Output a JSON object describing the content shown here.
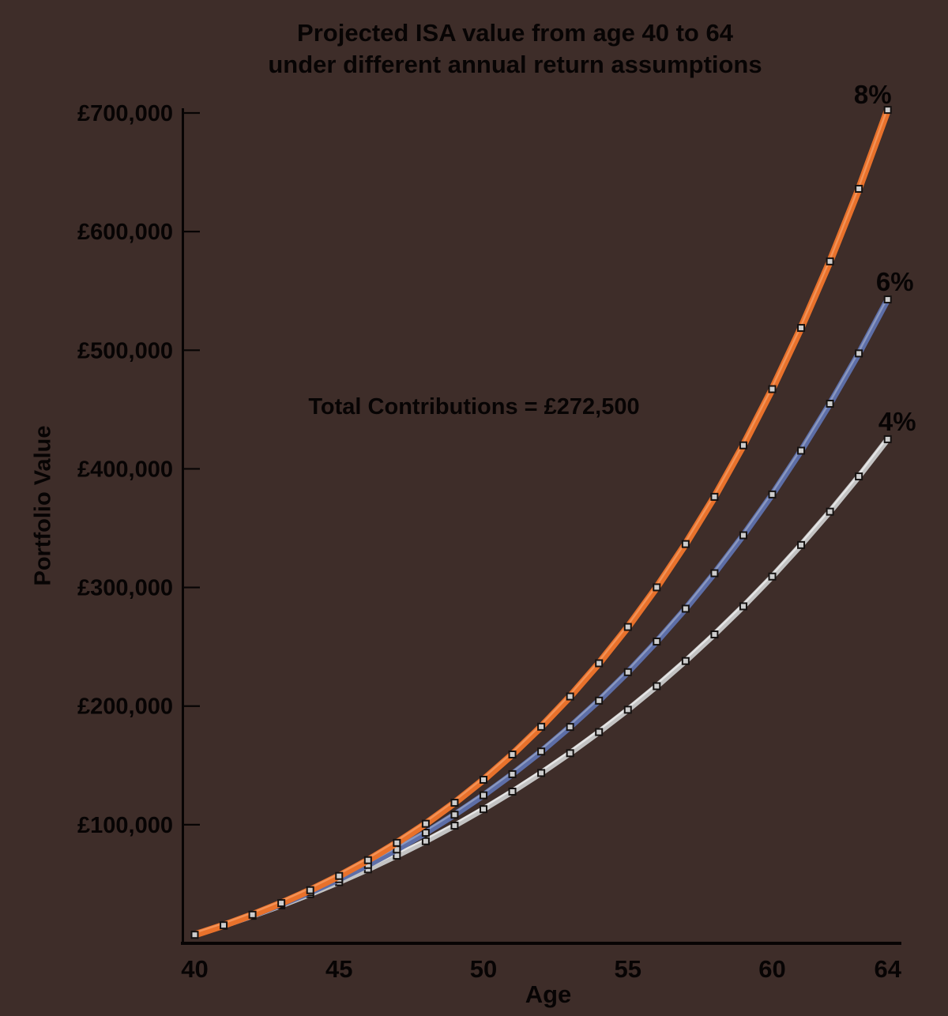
{
  "page": {
    "background_color": "#3E2D29",
    "text_color": "#070404"
  },
  "chart_data": {
    "type": "line",
    "title_line1": "Projected ISA value from age 40 to 64",
    "title_line2": "under different annual return assumptions",
    "xlabel": "Age",
    "ylabel": "Portfolio Value",
    "annotation": "Total Contributions = £272,500",
    "grid": false,
    "legend": "end-of-line labels",
    "x": [
      40,
      41,
      42,
      43,
      44,
      45,
      46,
      47,
      48,
      49,
      50,
      51,
      52,
      53,
      54,
      55,
      56,
      57,
      58,
      59,
      60,
      61,
      62,
      63,
      64
    ],
    "xtick_values": [
      40,
      45,
      50,
      55,
      60,
      64
    ],
    "xtick_labels": [
      "40",
      "45",
      "50",
      "55",
      "60",
      "64"
    ],
    "ytick_values": [
      100000,
      200000,
      300000,
      400000,
      500000,
      600000,
      700000
    ],
    "ytick_labels": [
      "£100,000",
      "£200,000",
      "£300,000",
      "£400,000",
      "£500,000",
      "£600,000",
      "£700,000"
    ],
    "ylim": [
      0,
      700000
    ],
    "xlim": [
      40,
      64
    ],
    "marker": {
      "shape": "square",
      "fill": "#CDCDCD",
      "stroke": "#141110"
    },
    "series": [
      {
        "name": "8%",
        "color": "#E8712B",
        "color_light": "#F4965B",
        "stroke_width": 9,
        "values": [
          7200,
          15200,
          24100,
          33900,
          44800,
          56800,
          70100,
          84700,
          100800,
          118500,
          137900,
          159200,
          182600,
          208100,
          236100,
          266700,
          300100,
          336600,
          376400,
          419800,
          467200,
          518800,
          574900,
          636100,
          702600
        ]
      },
      {
        "name": "6%",
        "color": "#5D6EA7",
        "color_light": "#8F9CC3",
        "stroke_width": 8,
        "values": [
          7200,
          15000,
          23600,
          32900,
          43100,
          54100,
          66100,
          79100,
          93200,
          108400,
          124800,
          142600,
          161700,
          182400,
          204600,
          228600,
          254400,
          282100,
          312000,
          344000,
          378400,
          415300,
          454900,
          497300,
          542800
        ]
      },
      {
        "name": "4%",
        "color": "#C3C3C3",
        "color_light": "#E9E9E9",
        "stroke_width": 7.5,
        "values": [
          7200,
          14900,
          23200,
          32000,
          41500,
          51600,
          62400,
          73900,
          86100,
          99200,
          113100,
          127900,
          143600,
          160300,
          178100,
          196900,
          216800,
          238000,
          260400,
          284100,
          309200,
          335800,
          363900,
          393600,
          425000
        ]
      }
    ]
  }
}
